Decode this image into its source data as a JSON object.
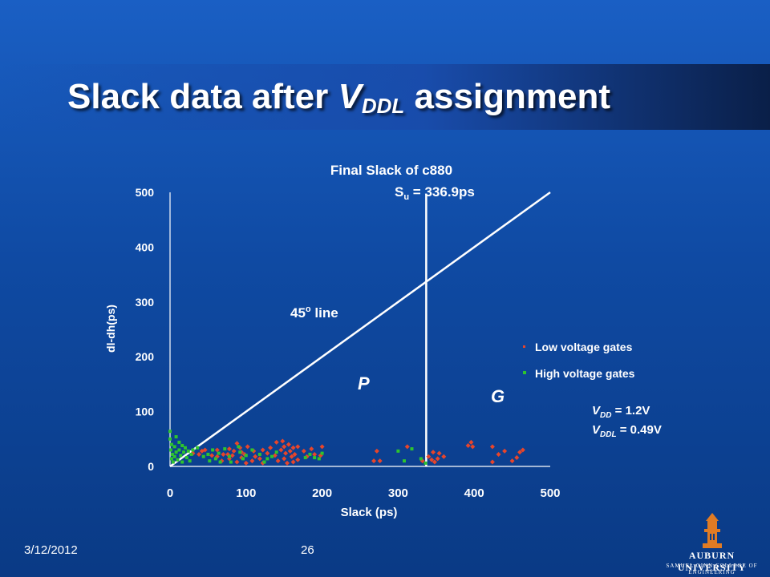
{
  "slide": {
    "title_prefix": "Slack data after ",
    "title_v": "V",
    "title_sub": "DDL",
    "title_suffix": " assignment",
    "date": "3/12/2012",
    "page_number": "26",
    "logo_line1": "AUBURN UNIVERSITY",
    "logo_line2": "SAMUEL GINN COLLEGE OF ENGINEERING"
  },
  "chart_data": {
    "type": "scatter",
    "title": "Final Slack of c880",
    "xlabel": "Slack (ps)",
    "ylabel": "dl-dh(ps)",
    "xlim": [
      0,
      500
    ],
    "ylim": [
      0,
      500
    ],
    "xticks": [
      "0",
      "100",
      "200",
      "300",
      "400",
      "500"
    ],
    "yticks": [
      "0",
      "100",
      "200",
      "300",
      "400",
      "500"
    ],
    "grid": false,
    "legend_position": "right",
    "su_label_main": "S",
    "su_label_sub": "u",
    "su_label_rest": " = 336.9ps",
    "su_value": 336.9,
    "diagonal_label": "45",
    "diagonal_label_sup": "o",
    "diagonal_label_rest": " line",
    "region_p": "P",
    "region_g": "G",
    "vdd_main": "V",
    "vdd_sub": "DD",
    "vdd_rest": " = 1.2V",
    "vddl_main": "V",
    "vddl_sub": "DDL",
    "vddl_rest": " = 0.49V",
    "colors": {
      "low": "#e8452a",
      "high": "#2ec42e",
      "line": "#ffffff"
    },
    "series": [
      {
        "name": "Low voltage gates",
        "points": [
          [
            30,
            24
          ],
          [
            38,
            22
          ],
          [
            42,
            28
          ],
          [
            46,
            30
          ],
          [
            55,
            20
          ],
          [
            62,
            30
          ],
          [
            62,
            18
          ],
          [
            68,
            10
          ],
          [
            70,
            22
          ],
          [
            76,
            22
          ],
          [
            78,
            32
          ],
          [
            78,
            14
          ],
          [
            82,
            20
          ],
          [
            84,
            28
          ],
          [
            88,
            8
          ],
          [
            88,
            42
          ],
          [
            92,
            34
          ],
          [
            94,
            26
          ],
          [
            94,
            16
          ],
          [
            98,
            22
          ],
          [
            100,
            6
          ],
          [
            102,
            36
          ],
          [
            108,
            10
          ],
          [
            110,
            28
          ],
          [
            112,
            18
          ],
          [
            118,
            14
          ],
          [
            122,
            30
          ],
          [
            122,
            6
          ],
          [
            128,
            24
          ],
          [
            132,
            34
          ],
          [
            138,
            20
          ],
          [
            140,
            44
          ],
          [
            142,
            10
          ],
          [
            146,
            30
          ],
          [
            148,
            46
          ],
          [
            150,
            14
          ],
          [
            150,
            36
          ],
          [
            152,
            24
          ],
          [
            154,
            6
          ],
          [
            156,
            40
          ],
          [
            158,
            28
          ],
          [
            160,
            18
          ],
          [
            162,
            8
          ],
          [
            162,
            34
          ],
          [
            164,
            22
          ],
          [
            168,
            12
          ],
          [
            168,
            36
          ],
          [
            176,
            28
          ],
          [
            180,
            18
          ],
          [
            186,
            32
          ],
          [
            190,
            22
          ],
          [
            198,
            20
          ],
          [
            200,
            36
          ],
          [
            268,
            10
          ],
          [
            272,
            28
          ],
          [
            276,
            10
          ],
          [
            312,
            36
          ],
          [
            332,
            10
          ],
          [
            340,
            18
          ],
          [
            344,
            12
          ],
          [
            346,
            26
          ],
          [
            348,
            8
          ],
          [
            352,
            14
          ],
          [
            354,
            24
          ],
          [
            360,
            18
          ],
          [
            392,
            38
          ],
          [
            396,
            44
          ],
          [
            398,
            36
          ],
          [
            424,
            36
          ],
          [
            424,
            8
          ],
          [
            432,
            22
          ],
          [
            440,
            28
          ],
          [
            450,
            10
          ],
          [
            456,
            16
          ],
          [
            460,
            26
          ],
          [
            464,
            30
          ]
        ]
      },
      {
        "name": "High voltage gates",
        "points": [
          [
            0,
            64
          ],
          [
            0,
            50
          ],
          [
            2,
            40
          ],
          [
            1,
            30
          ],
          [
            3,
            22
          ],
          [
            2,
            14
          ],
          [
            4,
            8
          ],
          [
            6,
            36
          ],
          [
            6,
            18
          ],
          [
            8,
            54
          ],
          [
            8,
            26
          ],
          [
            10,
            12
          ],
          [
            12,
            44
          ],
          [
            12,
            30
          ],
          [
            14,
            20
          ],
          [
            16,
            38
          ],
          [
            16,
            8
          ],
          [
            18,
            26
          ],
          [
            20,
            34
          ],
          [
            22,
            16
          ],
          [
            24,
            28
          ],
          [
            26,
            10
          ],
          [
            28,
            22
          ],
          [
            30,
            30
          ],
          [
            36,
            34
          ],
          [
            44,
            18
          ],
          [
            50,
            22
          ],
          [
            52,
            10
          ],
          [
            56,
            30
          ],
          [
            60,
            14
          ],
          [
            64,
            24
          ],
          [
            66,
            8
          ],
          [
            72,
            32
          ],
          [
            78,
            18
          ],
          [
            80,
            8
          ],
          [
            90,
            36
          ],
          [
            92,
            26
          ],
          [
            96,
            14
          ],
          [
            100,
            20
          ],
          [
            108,
            30
          ],
          [
            118,
            22
          ],
          [
            124,
            8
          ],
          [
            128,
            14
          ],
          [
            134,
            18
          ],
          [
            140,
            26
          ],
          [
            178,
            16
          ],
          [
            184,
            22
          ],
          [
            190,
            16
          ],
          [
            196,
            14
          ],
          [
            200,
            24
          ],
          [
            300,
            28
          ],
          [
            308,
            10
          ],
          [
            318,
            32
          ],
          [
            330,
            14
          ],
          [
            336,
            6
          ]
        ]
      }
    ]
  }
}
